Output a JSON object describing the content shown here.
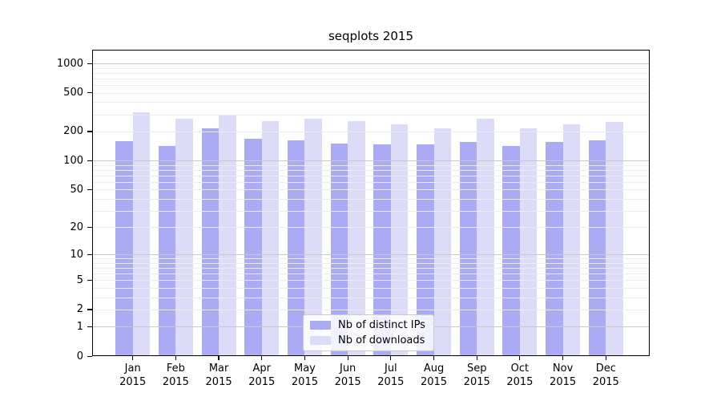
{
  "chart_data": {
    "type": "bar",
    "title": "seqplots 2015",
    "categories": [
      "Jan",
      "Feb",
      "Mar",
      "Apr",
      "May",
      "Jun",
      "Jul",
      "Aug",
      "Sep",
      "Oct",
      "Nov",
      "Dec"
    ],
    "x_year_label": "2015",
    "series": [
      {
        "name": "Nb of distinct IPs",
        "color": "#aaaaf5",
        "values": [
          160,
          142,
          214,
          169,
          163,
          149,
          146,
          146,
          156,
          142,
          156,
          162
        ]
      },
      {
        "name": "Nb of downloads",
        "color": "#dcdcf8",
        "values": [
          315,
          270,
          300,
          255,
          272,
          257,
          236,
          215,
          269,
          216,
          238,
          253
        ]
      }
    ],
    "y_axis": {
      "scale": "log1p",
      "tick_values": [
        1000,
        500,
        200,
        100,
        50,
        20,
        10,
        5,
        2,
        1,
        0
      ],
      "minor_gridlines": "mantissas 1-9 per decade",
      "ylim": [
        0,
        1200
      ]
    },
    "legend": {
      "position": "inside-bottom-center"
    },
    "colors": {
      "background": "#ffffff",
      "frame": "#000000",
      "gridline_decade": "#c9c9c9",
      "gridline_minor": "#ededed"
    }
  }
}
